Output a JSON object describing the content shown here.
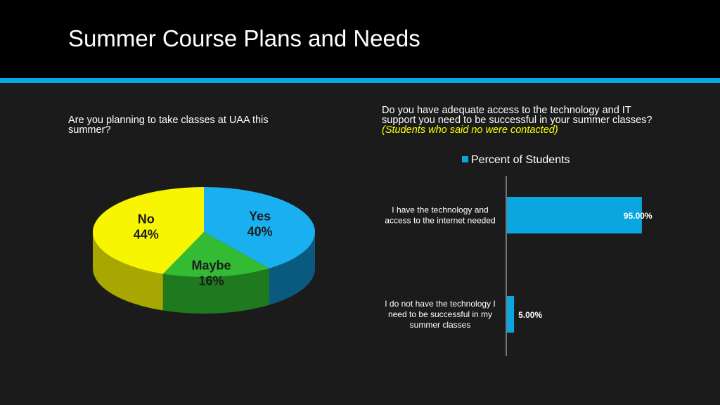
{
  "slide": {
    "title": "Summer Course Plans and Needs",
    "accent_color": "#0aa6e0",
    "background": "#1b1b1b",
    "header_background": "#000000"
  },
  "left": {
    "question": "Are you planning to take classes at UAA this summer?"
  },
  "right": {
    "question_main": "Do you have adequate access to the technology and IT support you need to be successful in your summer classes?",
    "question_note": "(Students who said no were contacted)",
    "note_color": "#ffff00"
  },
  "chart_data": [
    {
      "type": "pie",
      "style": "3d",
      "slices": [
        {
          "label": "Yes",
          "value": 40,
          "value_label": "40%",
          "color": "#1ab0f0",
          "side_color": "#0a5a80"
        },
        {
          "label": "Maybe",
          "value": 16,
          "value_label": "16%",
          "color": "#33bb33",
          "side_color": "#1f7a1f"
        },
        {
          "label": "No",
          "value": 44,
          "value_label": "44%",
          "color": "#f7f500",
          "side_color": "#a8a600"
        }
      ]
    },
    {
      "type": "bar",
      "orientation": "horizontal",
      "legend": {
        "label": "Percent of Students",
        "placement": "top"
      },
      "series": [
        {
          "name": "Percent of Students",
          "color": "#0aa6e0"
        }
      ],
      "categories": [
        {
          "lines": [
            "I have the technology and",
            "access to the internet needed"
          ]
        },
        {
          "lines": [
            "I do not have the technology I",
            "need to be successful in my",
            "summer classes"
          ]
        }
      ],
      "values": [
        95,
        5
      ],
      "value_labels": [
        "95.00%",
        "5.00%"
      ],
      "xlim": [
        0,
        100
      ]
    }
  ]
}
